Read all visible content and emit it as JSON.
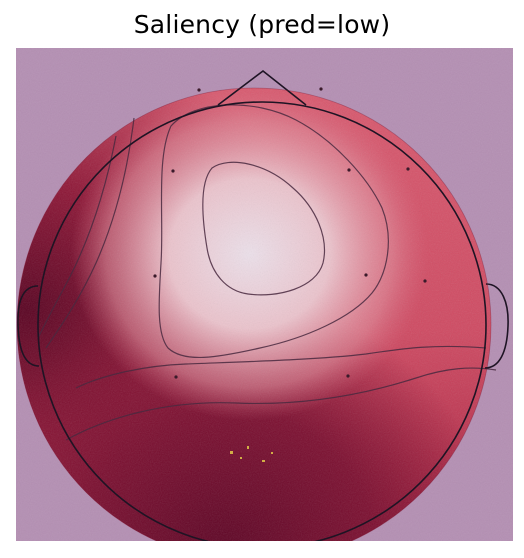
{
  "figure": {
    "title": "Saliency (pred=low)"
  },
  "colors": {
    "background_overlay": "#b48fb3",
    "hot": "#6b0a2c",
    "mid": "#c43a52",
    "warm": "#e79aa5",
    "cool": "#f3dde2",
    "outline": "#1e1424",
    "contour": "#4a2a40",
    "electrode": "#3a1a2a"
  },
  "map": {
    "type": "topomap",
    "head_outline": true,
    "nose": true,
    "ears": true,
    "contours": 5
  }
}
